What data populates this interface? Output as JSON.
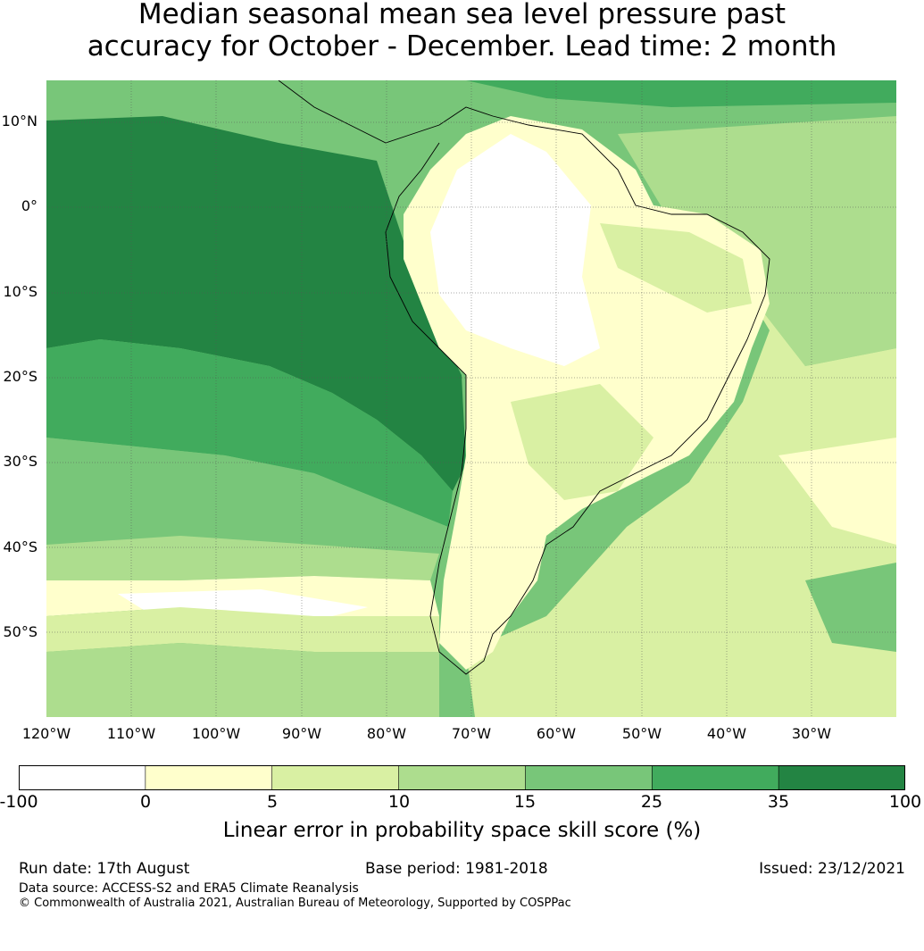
{
  "title": {
    "line1": "Median seasonal mean sea level pressure past",
    "line2": "accuracy for October - December. Lead time: 2 month"
  },
  "map": {
    "lat_labels": [
      "10°N",
      "0°",
      "10°S",
      "20°S",
      "30°S",
      "40°S",
      "50°S"
    ],
    "lon_labels": [
      "120°W",
      "110°W",
      "100°W",
      "90°W",
      "80°W",
      "70°W",
      "60°W",
      "50°W",
      "40°W",
      "30°W"
    ]
  },
  "colorbar": {
    "ticks": [
      "-100",
      "0",
      "5",
      "10",
      "15",
      "25",
      "35",
      "100"
    ],
    "colors": [
      "#ffffff",
      "#ffffcc",
      "#d9f0a3",
      "#addd8e",
      "#78c679",
      "#41ab5d",
      "#238443"
    ],
    "label": "Linear error in probability space skill score (%)"
  },
  "footer": {
    "run_date": "Run date: 17th August",
    "base_period": "Base period: 1981-2018",
    "issued": "Issued: 23/12/2021",
    "data_source": "Data source: ACCESS-S2 and ERA5 Climate Reanalysis",
    "copyright": "© Commonwealth of Australia 2021, Australian Bureau of Meteorology, Supported by COSPPac"
  }
}
